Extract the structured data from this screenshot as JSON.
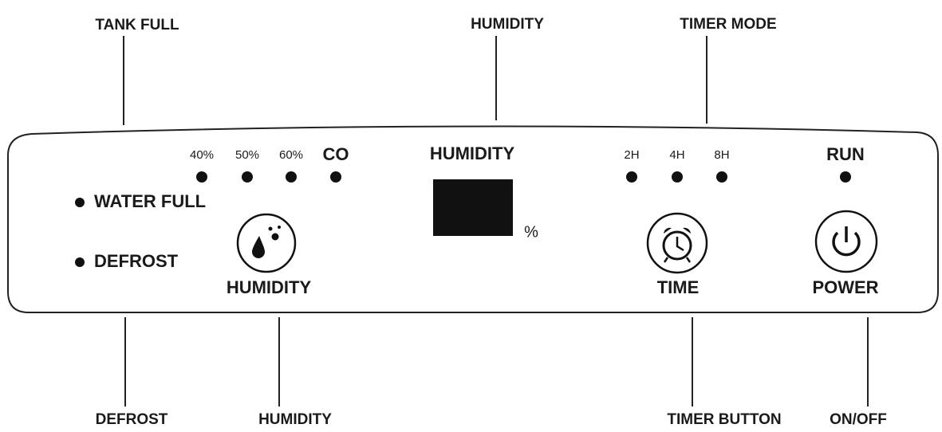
{
  "callouts": {
    "top": [
      "TANK FULL",
      "HUMIDITY",
      "TIMER MODE"
    ],
    "bottom": [
      "DEFROST",
      "HUMIDITY",
      "TIMER BUTTON",
      "ON/OFF"
    ]
  },
  "panel": {
    "humidity_levels": [
      "40%",
      "50%",
      "60%",
      "CO"
    ],
    "display": {
      "title": "HUMIDITY",
      "unit": "%"
    },
    "timer_levels": [
      "2H",
      "4H",
      "8H"
    ],
    "run": "RUN",
    "status": [
      "WATER FULL",
      "DEFROST"
    ],
    "buttons": [
      "HUMIDITY",
      "TIME",
      "POWER"
    ]
  }
}
